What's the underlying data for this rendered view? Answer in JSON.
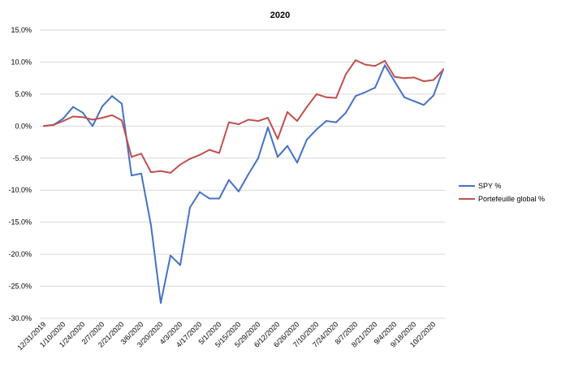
{
  "chart_data": {
    "type": "line",
    "title": "2020",
    "ylim": [
      -30.0,
      15.0
    ],
    "ytick_values": [
      15,
      10,
      5,
      0,
      -5,
      -10,
      -15,
      -20,
      -25,
      -30
    ],
    "ytick_labels": [
      "15.0%",
      "10.0%",
      "5.0%",
      "0.0%",
      "-5.0%",
      "-10.0%",
      "-15.0%",
      "-20.0%",
      "-25.0%",
      "-30.0%"
    ],
    "x_tick_labels": [
      "12/31/2019",
      "1/10/2020",
      "1/24/2020",
      "2/7/2020",
      "2/21/2020",
      "3/6/2020",
      "3/20/2020",
      "4/3/2020",
      "4/17/2020",
      "5/1/2020",
      "5/15/2020",
      "5/29/2020",
      "6/12/2020",
      "6/26/2020",
      "7/10/2020",
      "7/24/2020",
      "8/7/2020",
      "8/21/2020",
      "9/4/2020",
      "9/18/2020",
      "10/2/2020"
    ],
    "grid": "horizontal",
    "legend_position": "right",
    "series": [
      {
        "name": "SPY %",
        "color": "#4472C4",
        "values": [
          0.0,
          0.2,
          1.2,
          3.0,
          2.1,
          0.0,
          3.1,
          4.7,
          3.5,
          -7.7,
          -7.4,
          -15.5,
          -27.6,
          -20.2,
          -21.7,
          -12.7,
          -10.3,
          -11.3,
          -11.3,
          -8.4,
          -10.2,
          -7.5,
          -5.0,
          -0.2,
          -4.8,
          -3.1,
          -5.7,
          -2.1,
          -0.5,
          0.8,
          0.6,
          2.1,
          4.7,
          5.3,
          6.0,
          9.5,
          7.0,
          4.5,
          3.9,
          3.3,
          4.8,
          8.9
        ]
      },
      {
        "name": "Portefeuille global %",
        "color": "#C0504D",
        "values": [
          0.0,
          0.2,
          0.8,
          1.5,
          1.4,
          1.0,
          1.3,
          1.7,
          0.9,
          -4.8,
          -4.3,
          -7.2,
          -7.0,
          -7.3,
          -6.0,
          -5.1,
          -4.5,
          -3.7,
          -4.2,
          0.6,
          0.3,
          1.0,
          0.8,
          1.3,
          -2.0,
          2.2,
          0.8,
          3.0,
          5.0,
          4.5,
          4.4,
          8.1,
          10.3,
          9.6,
          9.4,
          10.2,
          7.7,
          7.5,
          7.6,
          7.0,
          7.2,
          8.8
        ]
      }
    ]
  }
}
